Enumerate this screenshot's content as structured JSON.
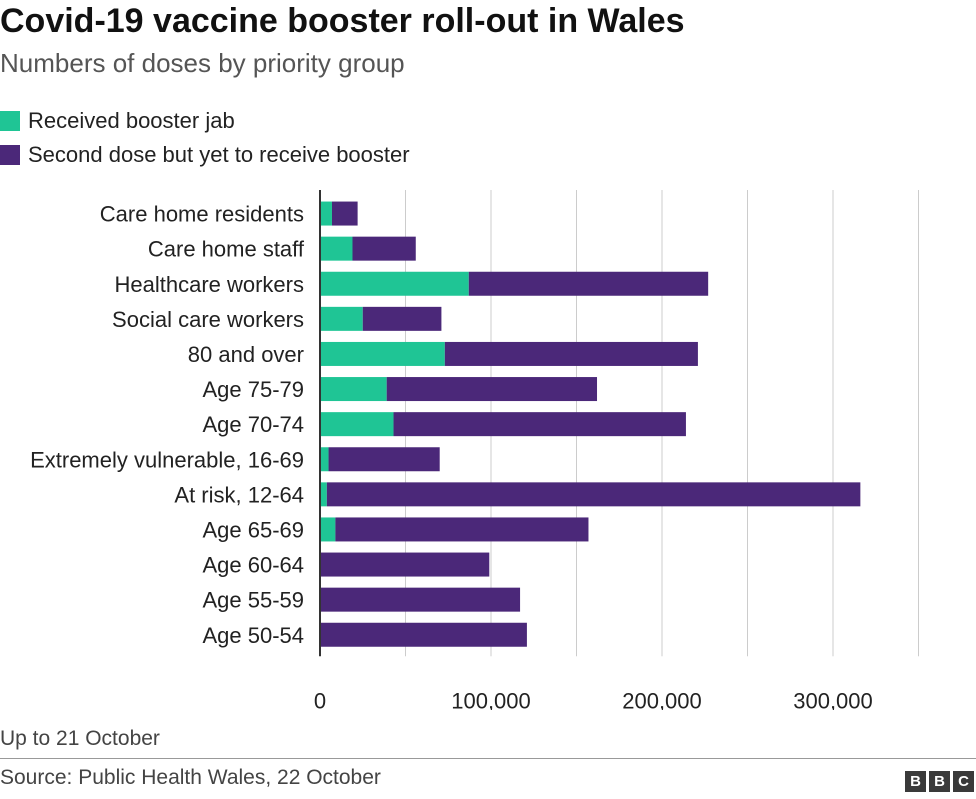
{
  "header": {
    "title": "Covid-19 vaccine booster roll-out in Wales",
    "subtitle": "Numbers of doses by priority group"
  },
  "colors": {
    "received": "#1fc595",
    "pending": "#4b2879",
    "gridline": "#cccccc",
    "axis": "#333333"
  },
  "chart_data": {
    "type": "bar",
    "orientation": "horizontal",
    "stacked": true,
    "categories": [
      "Care home residents",
      "Care home staff",
      "Healthcare workers",
      "Social care workers",
      "80 and over",
      "Age 75-79",
      "Age 70-74",
      "Extremely vulnerable, 16-69",
      "At risk, 12-64",
      "Age 65-69",
      "Age 60-64",
      "Age 55-59",
      "Age 50-54"
    ],
    "series": [
      {
        "name": "Received booster jab",
        "values": [
          7000,
          19000,
          87000,
          25000,
          73000,
          39000,
          43000,
          5000,
          4000,
          9000,
          0,
          0,
          0
        ]
      },
      {
        "name": "Second dose but yet to receive booster",
        "values": [
          15000,
          37000,
          140000,
          46000,
          148000,
          123000,
          171000,
          65000,
          312000,
          148000,
          99000,
          117000,
          121000
        ]
      }
    ],
    "xlim": [
      0,
      350000
    ],
    "xticks": [
      0,
      100000,
      200000,
      300000
    ],
    "xtick_labels": [
      "0",
      "100,000",
      "200,000",
      "300,000"
    ],
    "grid": true,
    "legend_position": "top-left"
  },
  "footer": {
    "note": "Up to 21 October",
    "source": "Source: Public Health Wales, 22 October",
    "logo_letters": [
      "B",
      "B",
      "C"
    ]
  }
}
